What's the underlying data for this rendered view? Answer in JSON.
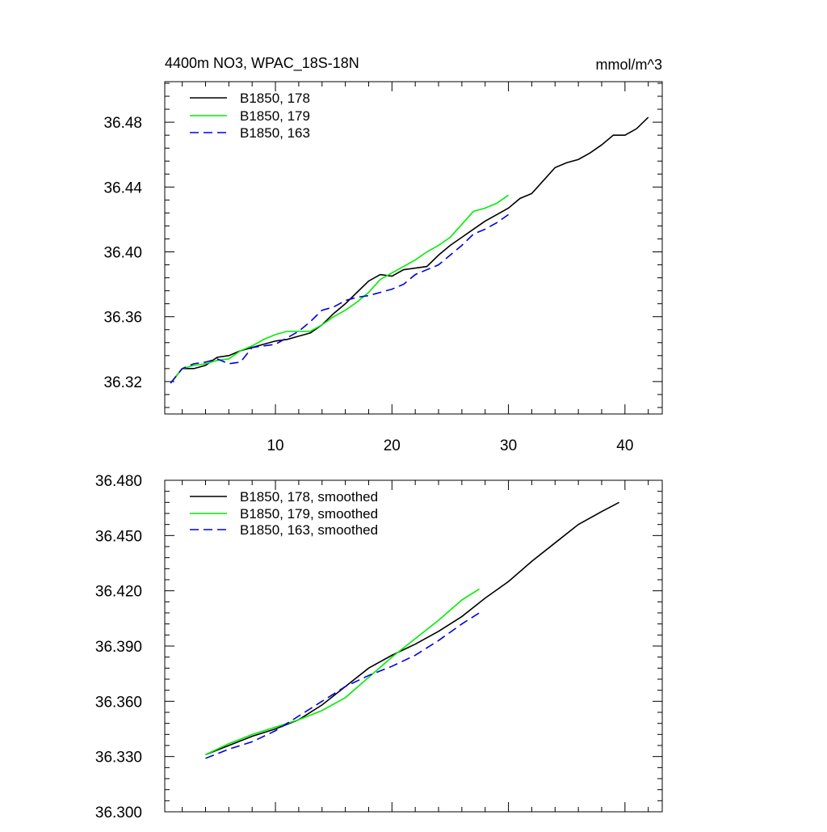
{
  "colors": {
    "run178": "#000000",
    "run179": "#00ee00",
    "run163": "#0000dd"
  },
  "top": {
    "title": "4400m NO3, WPAC_18S-18N",
    "units": "mmol/m^3",
    "legend": [
      "B1850, 178",
      "B1850, 179",
      "B1850, 163"
    ]
  },
  "bottom": {
    "legend": [
      "B1850, 178, smoothed",
      "B1850, 179, smoothed",
      "B1850, 163, smoothed"
    ]
  },
  "chart_data": [
    {
      "type": "line",
      "title": "4400m NO3, WPAC_18S-18N",
      "units": "mmol/m^3",
      "xlim": [
        0.5,
        43.2
      ],
      "ylim": [
        36.3,
        36.505
      ],
      "x_ticks": [
        10,
        20,
        30,
        40
      ],
      "x_tick_labels": [
        "10",
        "20",
        "30",
        "40"
      ],
      "y_ticks": [
        36.32,
        36.36,
        36.4,
        36.44,
        36.48
      ],
      "y_tick_labels": [
        "36.32",
        "36.36",
        "36.40",
        "36.44",
        "36.48"
      ],
      "x_minor_step": 2,
      "y_minor_step": 0.008,
      "legend_position": "top-left",
      "grid": false,
      "series": [
        {
          "name": "B1850, 178",
          "color_key": "run178",
          "dash": "solid",
          "x": [
            1,
            2,
            3,
            4,
            5,
            6,
            7,
            8,
            9,
            10,
            11,
            12,
            13,
            14,
            15,
            16,
            17,
            18,
            19,
            20,
            21,
            22,
            23,
            24,
            25,
            26,
            27,
            28,
            29,
            30,
            31,
            32,
            33,
            34,
            35,
            36,
            37,
            38,
            39,
            40,
            41,
            42
          ],
          "y": [
            36.319,
            36.328,
            36.328,
            36.33,
            36.335,
            36.336,
            36.339,
            36.341,
            36.343,
            36.345,
            36.346,
            36.348,
            36.35,
            36.355,
            36.362,
            36.368,
            36.375,
            36.382,
            36.386,
            36.385,
            36.389,
            36.39,
            36.391,
            36.398,
            36.404,
            36.409,
            36.414,
            36.419,
            36.423,
            36.427,
            36.433,
            36.436,
            36.444,
            36.452,
            36.455,
            36.457,
            36.461,
            36.466,
            36.472,
            36.472,
            36.476,
            36.483
          ]
        },
        {
          "name": "B1850, 179",
          "color_key": "run179",
          "dash": "solid",
          "x": [
            1,
            2,
            3,
            4,
            5,
            6,
            7,
            8,
            9,
            10,
            11,
            12,
            13,
            14,
            15,
            16,
            17,
            18,
            19,
            20,
            21,
            22,
            23,
            24,
            25,
            26,
            27,
            28,
            29,
            30
          ],
          "y": [
            36.319,
            36.328,
            36.33,
            36.331,
            36.333,
            36.334,
            36.339,
            36.342,
            36.346,
            36.349,
            36.351,
            36.351,
            36.351,
            36.355,
            36.36,
            36.364,
            36.369,
            36.375,
            36.383,
            36.387,
            36.391,
            36.395,
            36.4,
            36.404,
            36.409,
            36.417,
            36.425,
            36.427,
            36.43,
            36.435
          ]
        },
        {
          "name": "B1850, 163",
          "color_key": "run163",
          "dash": "dashed",
          "x": [
            1,
            2,
            3,
            4,
            5,
            6,
            7,
            8,
            9,
            10,
            11,
            12,
            13,
            14,
            15,
            16,
            17,
            18,
            19,
            20,
            21,
            22,
            23,
            24,
            25,
            26,
            27,
            28,
            29,
            30
          ],
          "y": [
            36.319,
            36.328,
            36.331,
            36.332,
            36.334,
            36.331,
            36.332,
            36.341,
            36.342,
            36.343,
            36.347,
            36.351,
            36.357,
            36.364,
            36.366,
            36.37,
            36.372,
            36.373,
            36.375,
            36.377,
            36.38,
            36.386,
            36.389,
            36.392,
            36.398,
            36.404,
            36.411,
            36.414,
            36.418,
            36.423
          ]
        }
      ]
    },
    {
      "type": "line",
      "xlim": [
        0.5,
        43.2
      ],
      "ylim": [
        36.3,
        36.48
      ],
      "x_ticks": [
        10,
        20,
        30,
        40
      ],
      "x_tick_labels": [],
      "y_ticks": [
        36.3,
        36.33,
        36.36,
        36.39,
        36.42,
        36.45,
        36.48
      ],
      "y_tick_labels": [
        "36.300",
        "36.330",
        "36.360",
        "36.390",
        "36.420",
        "36.450",
        "36.480"
      ],
      "x_minor_step": 2,
      "y_minor_step": 0.006,
      "legend_position": "top-left",
      "grid": false,
      "series": [
        {
          "name": "B1850, 178, smoothed",
          "color_key": "run178",
          "dash": "solid",
          "x": [
            4,
            6,
            8,
            10,
            12,
            14,
            16,
            18,
            20,
            22,
            24,
            26,
            28,
            30,
            32,
            34,
            36,
            38,
            39.5
          ],
          "y": [
            36.331,
            36.336,
            36.341,
            36.345,
            36.35,
            36.358,
            36.368,
            36.378,
            36.385,
            36.391,
            36.398,
            36.406,
            36.416,
            36.425,
            36.436,
            36.446,
            36.456,
            36.463,
            36.468
          ]
        },
        {
          "name": "B1850, 179, smoothed",
          "color_key": "run179",
          "dash": "solid",
          "x": [
            4,
            6,
            8,
            10,
            12,
            14,
            16,
            18,
            20,
            22,
            24,
            26,
            27.5
          ],
          "y": [
            36.331,
            36.337,
            36.342,
            36.346,
            36.35,
            36.355,
            36.362,
            36.373,
            36.384,
            36.394,
            36.404,
            36.415,
            36.421
          ]
        },
        {
          "name": "B1850, 163, smoothed",
          "color_key": "run163",
          "dash": "dashed",
          "x": [
            4,
            6,
            8,
            10,
            12,
            14,
            16,
            18,
            20,
            22,
            24,
            26,
            27.5
          ],
          "y": [
            36.329,
            36.334,
            36.338,
            36.344,
            36.352,
            36.36,
            36.368,
            36.374,
            36.379,
            36.385,
            36.393,
            36.402,
            36.408
          ]
        }
      ]
    }
  ]
}
